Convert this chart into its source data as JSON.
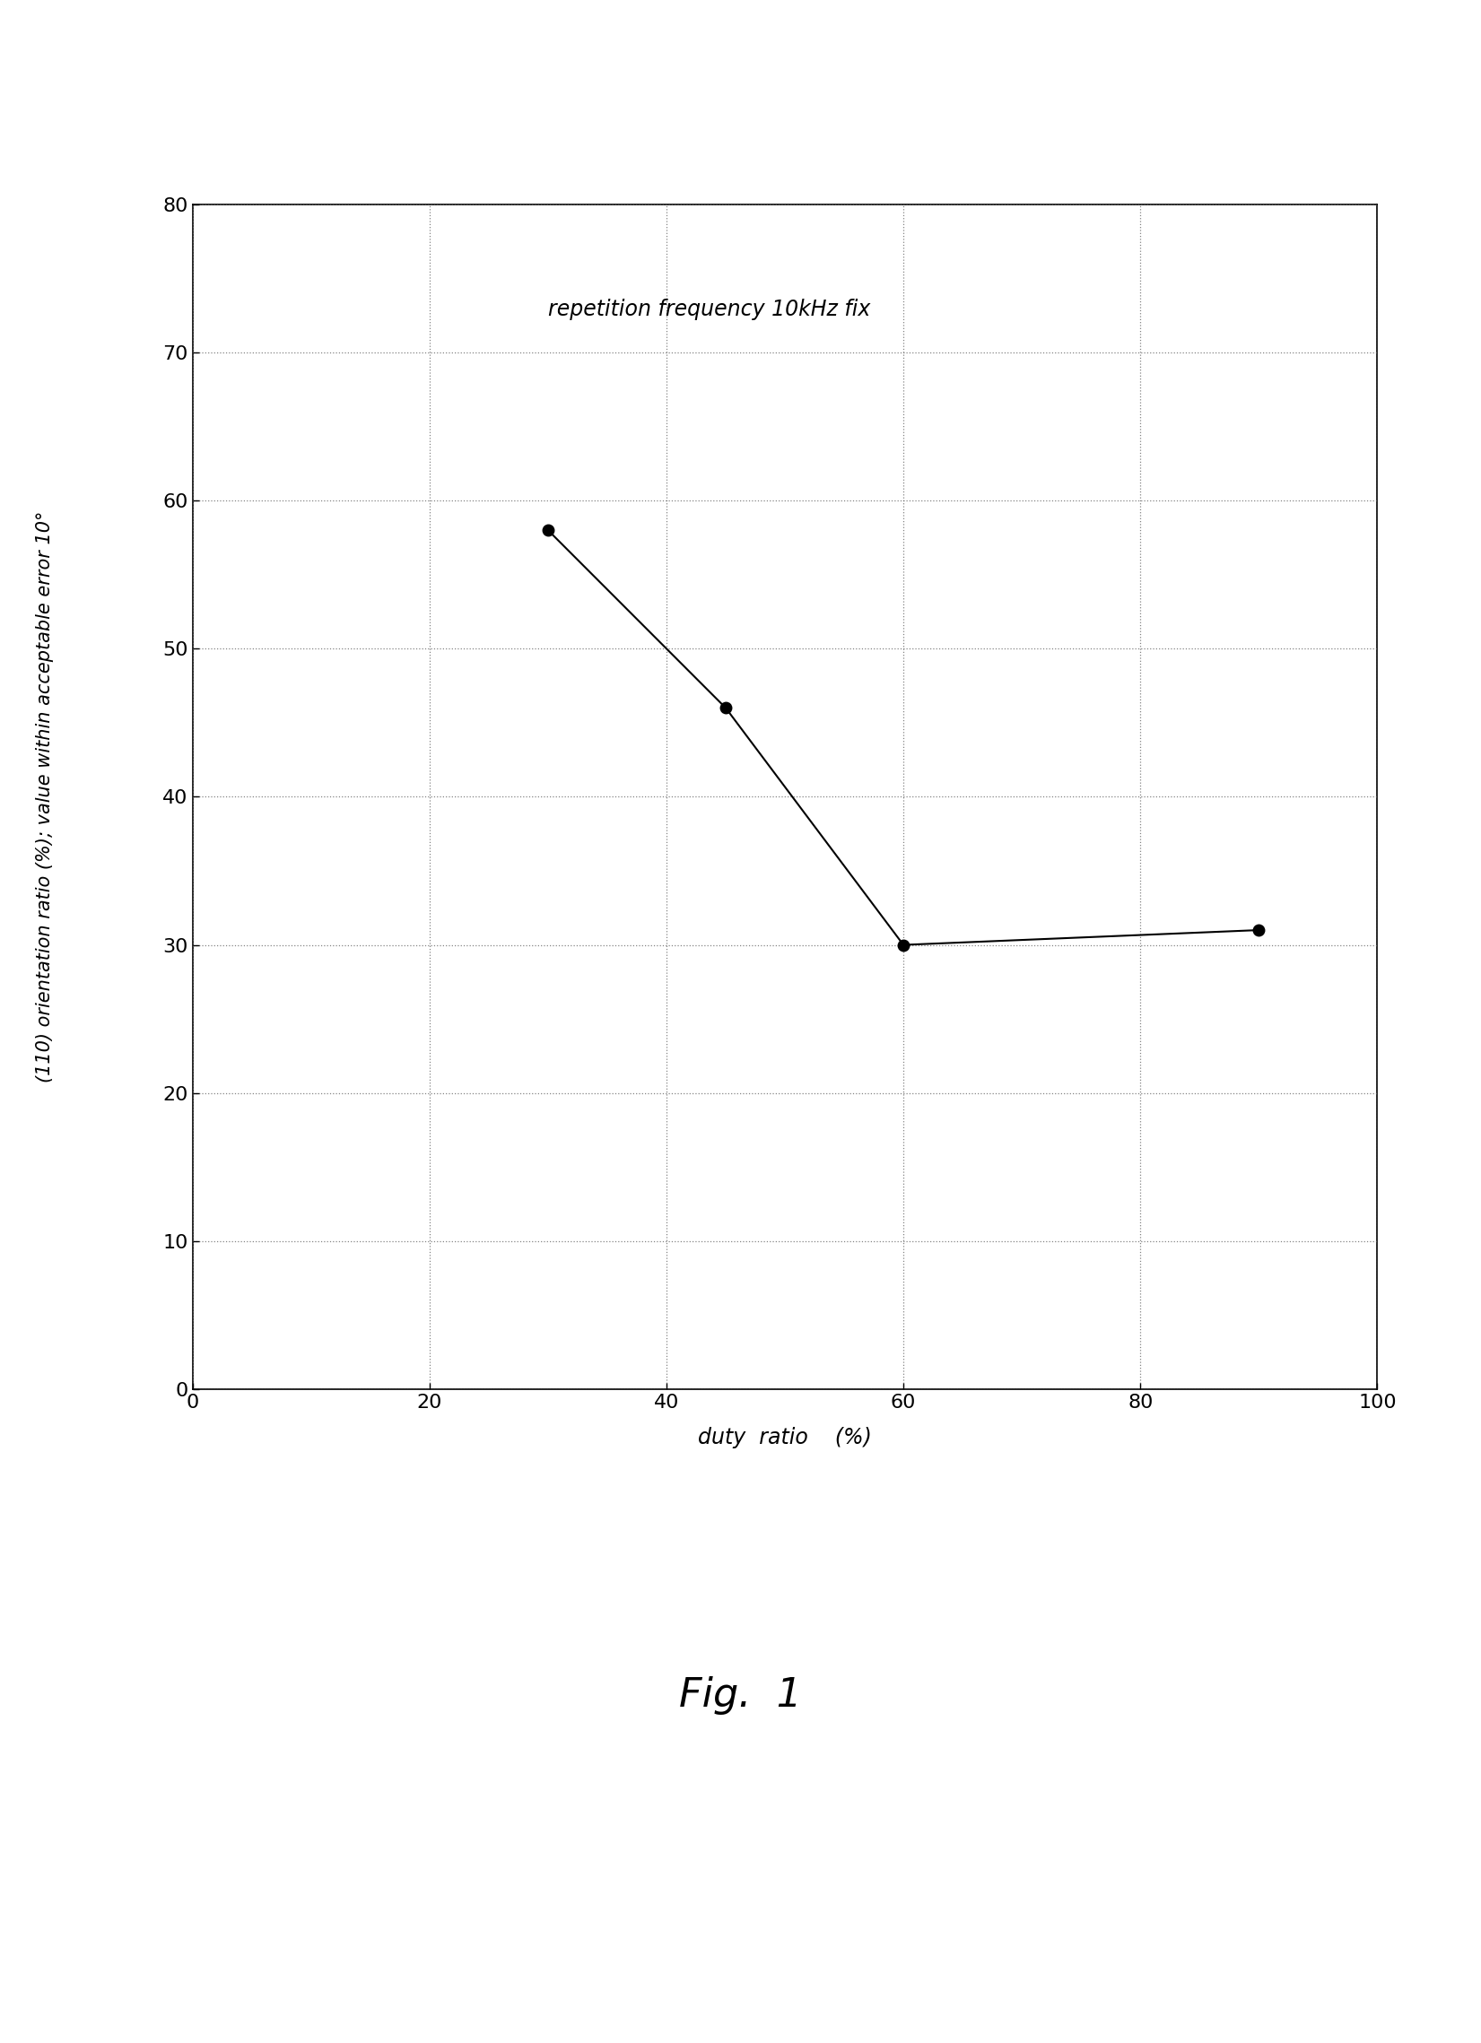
{
  "x_data": [
    30,
    45,
    60,
    90
  ],
  "y_data": [
    58,
    46,
    30,
    31
  ],
  "xlim": [
    0,
    100
  ],
  "ylim": [
    0,
    80
  ],
  "xticks": [
    0,
    20,
    40,
    60,
    80,
    100
  ],
  "yticks": [
    0,
    10,
    20,
    30,
    40,
    50,
    60,
    70,
    80
  ],
  "xlabel": "duty  ratio    (%)",
  "ylabel": "(110) orientation ratio (%); value within acceptable error 10°",
  "annotation": "repetition frequency 10kHz fix",
  "fig_label": "Fig.  1",
  "background_color": "#ffffff",
  "line_color": "#000000",
  "marker_color": "#000000",
  "grid_color": "#666666",
  "marker_size": 9,
  "line_width": 1.5,
  "font_size_annotation": 17,
  "font_size_axis_label": 17,
  "font_size_tick": 16,
  "font_size_fig_label": 32,
  "font_size_ylabel": 15
}
